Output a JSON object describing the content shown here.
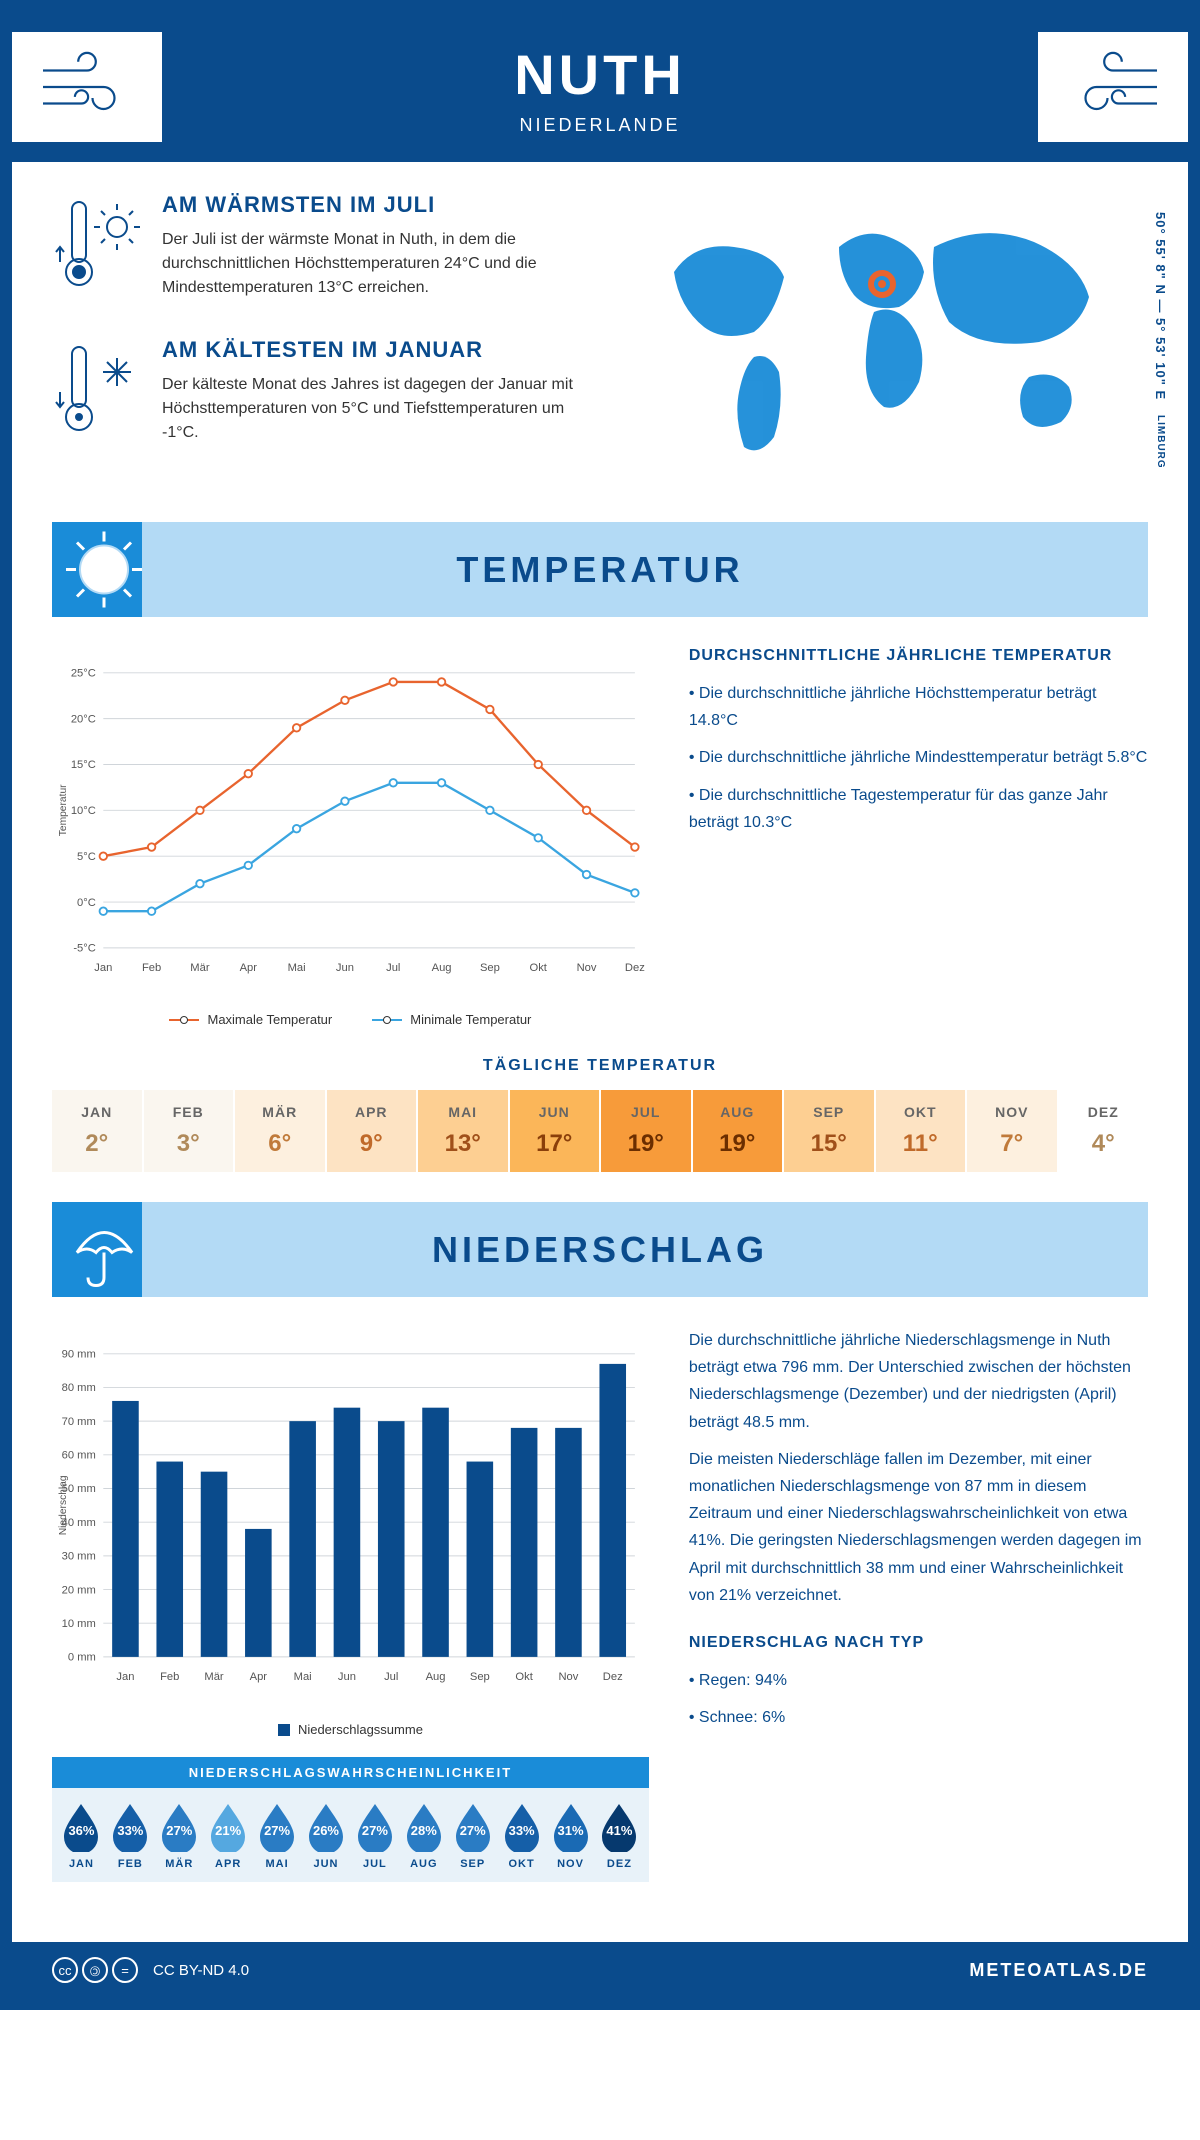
{
  "header": {
    "title": "NUTH",
    "subtitle": "NIEDERLANDE"
  },
  "colors": {
    "primary": "#0a4b8c",
    "accent": "#1a8cd8",
    "band": "#b3daf5",
    "max_line": "#e8642e",
    "min_line": "#3aa5e0",
    "bar": "#0a4b8c",
    "grid": "#d0d5da",
    "marker_pin": "#e8642e"
  },
  "coords": {
    "text": "50° 55' 8\" N — 5° 53' 10\" E",
    "region": "LIMBURG"
  },
  "facts": [
    {
      "title": "AM WÄRMSTEN IM JULI",
      "text": "Der Juli ist der wärmste Monat in Nuth, in dem die durchschnittlichen Höchsttemperaturen 24°C und die Mindesttemperaturen 13°C erreichen."
    },
    {
      "title": "AM KÄLTESTEN IM JANUAR",
      "text": "Der kälteste Monat des Jahres ist dagegen der Januar mit Höchsttemperaturen von 5°C und Tiefsttemperaturen um -1°C."
    }
  ],
  "sections": {
    "temperature": "TEMPERATUR",
    "precipitation": "NIEDERSCHLAG"
  },
  "temp_chart": {
    "months": [
      "Jan",
      "Feb",
      "Mär",
      "Apr",
      "Mai",
      "Jun",
      "Jul",
      "Aug",
      "Sep",
      "Okt",
      "Nov",
      "Dez"
    ],
    "max": [
      5,
      6,
      10,
      14,
      19,
      22,
      24,
      24,
      21,
      15,
      10,
      6
    ],
    "min": [
      -1,
      -1,
      2,
      4,
      8,
      11,
      13,
      13,
      10,
      7,
      3,
      1
    ],
    "ylim": [
      -5,
      25
    ],
    "ystep": 5,
    "ylabel": "Temperatur",
    "legend_max": "Maximale Temperatur",
    "legend_min": "Minimale Temperatur"
  },
  "temp_text": {
    "heading": "DURCHSCHNITTLICHE JÄHRLICHE TEMPERATUR",
    "bullets": [
      "Die durchschnittliche jährliche Höchsttemperatur beträgt 14.8°C",
      "Die durchschnittliche jährliche Mindesttemperatur beträgt 5.8°C",
      "Die durchschnittliche Tagestemperatur für das ganze Jahr beträgt 10.3°C"
    ]
  },
  "daily_temp": {
    "title": "TÄGLICHE TEMPERATUR",
    "months": [
      "JAN",
      "FEB",
      "MÄR",
      "APR",
      "MAI",
      "JUN",
      "JUL",
      "AUG",
      "SEP",
      "OKT",
      "NOV",
      "DEZ"
    ],
    "values": [
      "2°",
      "3°",
      "6°",
      "9°",
      "13°",
      "17°",
      "19°",
      "19°",
      "15°",
      "11°",
      "7°",
      "4°"
    ],
    "bg_colors": [
      "#faf6ef",
      "#faf6ef",
      "#fdf0df",
      "#fde3c3",
      "#fdcf92",
      "#fbb659",
      "#f79b3a",
      "#f79b3a",
      "#fdcf92",
      "#fde3c3",
      "#fdf0df",
      "#ffffff"
    ],
    "text_colors": [
      "#b08a5a",
      "#b08a5a",
      "#c07a3a",
      "#c06a2a",
      "#a0501a",
      "#8a3f0a",
      "#6b2e00",
      "#6b2e00",
      "#a0501a",
      "#c06a2a",
      "#c07a3a",
      "#b08a5a"
    ]
  },
  "precip_chart": {
    "months": [
      "Jan",
      "Feb",
      "Mär",
      "Apr",
      "Mai",
      "Jun",
      "Jul",
      "Aug",
      "Sep",
      "Okt",
      "Nov",
      "Dez"
    ],
    "values": [
      76,
      58,
      55,
      38,
      70,
      74,
      70,
      74,
      58,
      68,
      68,
      87
    ],
    "ylim": [
      0,
      90
    ],
    "ystep": 10,
    "ylabel": "Niederschlag",
    "legend": "Niederschlagssumme"
  },
  "precip_text": {
    "p1": "Die durchschnittliche jährliche Niederschlagsmenge in Nuth beträgt etwa 796 mm. Der Unterschied zwischen der höchsten Niederschlagsmenge (Dezember) und der niedrigsten (April) beträgt 48.5 mm.",
    "p2": "Die meisten Niederschläge fallen im Dezember, mit einer monatlichen Niederschlagsmenge von 87 mm in diesem Zeitraum und einer Niederschlagswahrscheinlichkeit von etwa 41%. Die geringsten Niederschlagsmengen werden dagegen im April mit durchschnittlich 38 mm und einer Wahrscheinlichkeit von 21% verzeichnet.",
    "type_heading": "NIEDERSCHLAG NACH TYP",
    "type_bullets": [
      "Regen: 94%",
      "Schnee: 6%"
    ]
  },
  "rain_prob": {
    "title": "NIEDERSCHLAGSWAHRSCHEINLICHKEIT",
    "months": [
      "JAN",
      "FEB",
      "MÄR",
      "APR",
      "MAI",
      "JUN",
      "JUL",
      "AUG",
      "SEP",
      "OKT",
      "NOV",
      "DEZ"
    ],
    "pct": [
      "36%",
      "33%",
      "27%",
      "21%",
      "27%",
      "26%",
      "27%",
      "28%",
      "27%",
      "33%",
      "31%",
      "41%"
    ],
    "drop_colors": [
      "#0a4b8c",
      "#155fa8",
      "#2a7cc4",
      "#55a8e0",
      "#2a7cc4",
      "#2a7cc4",
      "#2a7cc4",
      "#2a7cc4",
      "#2a7cc4",
      "#155fa8",
      "#1a6ab4",
      "#06396e"
    ]
  },
  "footer": {
    "license": "CC BY-ND 4.0",
    "site": "METEOATLAS.DE"
  }
}
